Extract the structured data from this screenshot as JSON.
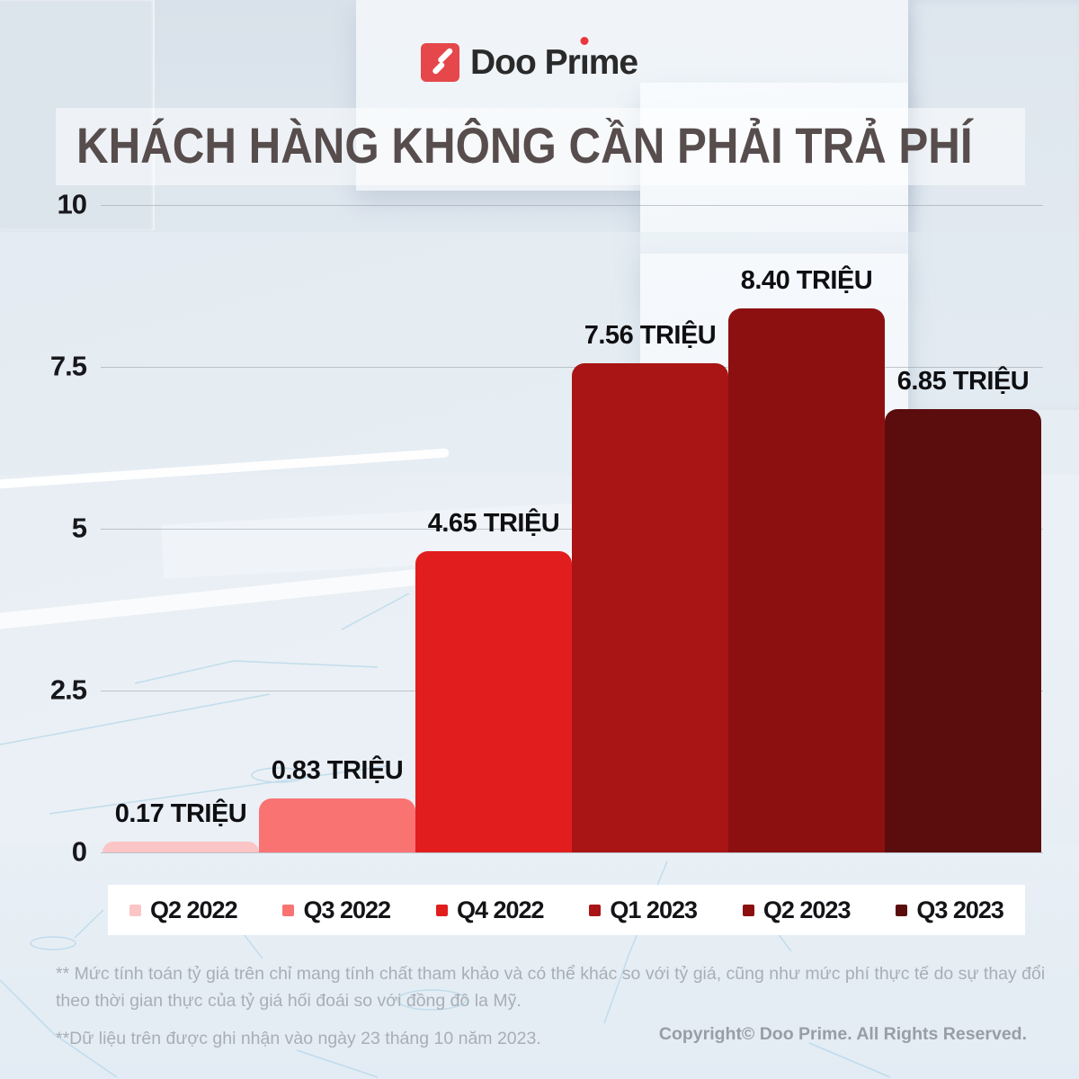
{
  "brand": {
    "name": "Doo Prime",
    "name_part1": "Doo Pr",
    "name_part_i": "ı",
    "name_part2": "me",
    "logo_square_red": "#e5474b",
    "accent_red": "#e8383d"
  },
  "title": "KHÁCH HÀNG KHÔNG CẦN PHẢI TRẢ PHÍ",
  "chart_data": {
    "type": "bar",
    "title": "KHÁCH HÀNG KHÔNG CẦN PHẢI TRẢ PHÍ",
    "categories": [
      "Q2 2022",
      "Q3 2022",
      "Q4 2022",
      "Q1 2023",
      "Q2 2023",
      "Q3 2023"
    ],
    "values": [
      0.17,
      0.83,
      4.65,
      7.56,
      8.4,
      6.85
    ],
    "unit": "TRIỆU",
    "bar_labels": [
      "0.17 TRIỆU",
      "0.83 TRIỆU",
      "4.65 TRIỆU",
      "7.56 TRIỆU",
      "8.40 TRIỆU",
      "6.85 TRIỆU"
    ],
    "bar_colors": [
      "#fbc5c5",
      "#f97373",
      "#e21d1e",
      "#a91414",
      "#8d1010",
      "#5b0c0c"
    ],
    "xlabel": "",
    "ylabel": "",
    "ylim": [
      0,
      10
    ],
    "yticks": [
      0,
      2.5,
      5,
      7.5,
      10
    ],
    "grid": true,
    "legend_position": "bottom"
  },
  "footnotes": {
    "note1": "** Mức tính toán tỷ giá trên chỉ mang tính chất tham khảo và có thể khác so với tỷ giá, cũng như mức phí thực tế do sự thay đổi theo thời gian thực của tỷ giá hối đoái so với đồng đô la Mỹ.",
    "note2": "**Dữ liệu trên được ghi nhận vào ngày 23 tháng 10 năm 2023."
  },
  "copyright": "Copyright© Doo Prime. All Rights Reserved."
}
